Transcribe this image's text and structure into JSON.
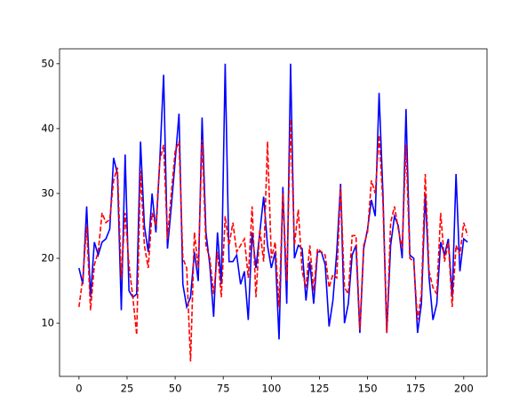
{
  "chart_data": {
    "type": "line",
    "x": [
      0,
      2,
      4,
      6,
      8,
      10,
      12,
      14,
      16,
      18,
      20,
      22,
      24,
      26,
      28,
      30,
      32,
      34,
      36,
      38,
      40,
      42,
      44,
      46,
      48,
      50,
      52,
      54,
      56,
      58,
      60,
      62,
      64,
      66,
      68,
      70,
      72,
      74,
      76,
      78,
      80,
      82,
      84,
      86,
      88,
      90,
      92,
      94,
      96,
      98,
      100,
      102,
      104,
      106,
      108,
      110,
      112,
      114,
      116,
      118,
      120,
      122,
      124,
      126,
      128,
      130,
      132,
      134,
      136,
      138,
      140,
      142,
      144,
      146,
      148,
      150,
      152,
      154,
      156,
      158,
      160,
      162,
      164,
      166,
      168,
      170,
      172,
      174,
      176,
      178,
      180,
      182,
      184,
      186,
      188,
      190,
      192,
      194,
      196,
      198,
      200,
      202
    ],
    "series": [
      {
        "color": "#0000ff",
        "dash": false,
        "values": [
          18.5,
          16,
          28,
          14,
          22.5,
          20.5,
          22.5,
          23,
          24.5,
          35.5,
          33,
          12,
          36,
          15,
          14,
          14.5,
          38,
          25,
          21,
          30,
          24,
          35,
          48.3,
          21.5,
          28,
          35,
          42.3,
          16,
          12.5,
          14,
          21,
          16.5,
          41.7,
          24,
          19,
          11,
          24,
          16,
          50,
          19.5,
          19.5,
          20.5,
          16,
          18,
          10.5,
          24,
          18.5,
          24,
          29.5,
          22,
          18.5,
          21,
          7.5,
          31,
          13,
          50,
          20,
          22,
          21.5,
          13.5,
          19.5,
          13,
          21,
          21,
          19,
          9.5,
          13.5,
          21,
          31.5,
          10,
          13,
          20.5,
          22,
          8.5,
          21.5,
          24.5,
          29,
          26.5,
          45.5,
          30,
          8.5,
          22,
          26.5,
          25,
          20,
          43,
          20.5,
          20,
          8.5,
          13,
          30,
          17,
          10.5,
          13,
          22.5,
          20.5,
          23,
          14,
          33,
          18,
          23,
          22.5
        ]
      },
      {
        "color": "#ff0000",
        "dash": true,
        "values": [
          12.5,
          17,
          25,
          12,
          19,
          21,
          27,
          25.5,
          26,
          32,
          34,
          17,
          27,
          19,
          14,
          8.2,
          33.5,
          22,
          18.5,
          27,
          25,
          35,
          37.5,
          23,
          30,
          36.5,
          38,
          20,
          18.5,
          4.1,
          24,
          18.5,
          38.3,
          22,
          20,
          14.5,
          21,
          14,
          26.5,
          22,
          25.5,
          21,
          22,
          23,
          17,
          28,
          14,
          24.5,
          19.5,
          38,
          20,
          22.5,
          12.5,
          30,
          16.5,
          41.5,
          22,
          27.5,
          18,
          15.5,
          22,
          15,
          21.5,
          21,
          20.5,
          15.5,
          17.5,
          17,
          31,
          15.5,
          14.5,
          23.5,
          23.5,
          9,
          22,
          24,
          32,
          30,
          39,
          28.5,
          8.5,
          25.5,
          28,
          24.5,
          21.5,
          37.5,
          20,
          19.5,
          10.5,
          14.5,
          33,
          18,
          15.5,
          14.5,
          27,
          19.5,
          22.5,
          12.5,
          22,
          20.5,
          25.5,
          23.5
        ]
      }
    ],
    "xlim": [
      -10.1,
      212.1
    ],
    "ylim": [
      1.8,
      52.3
    ],
    "xticks": [
      0,
      25,
      50,
      75,
      100,
      125,
      150,
      175,
      200
    ],
    "yticks": [
      10,
      20,
      30,
      40,
      50
    ]
  }
}
